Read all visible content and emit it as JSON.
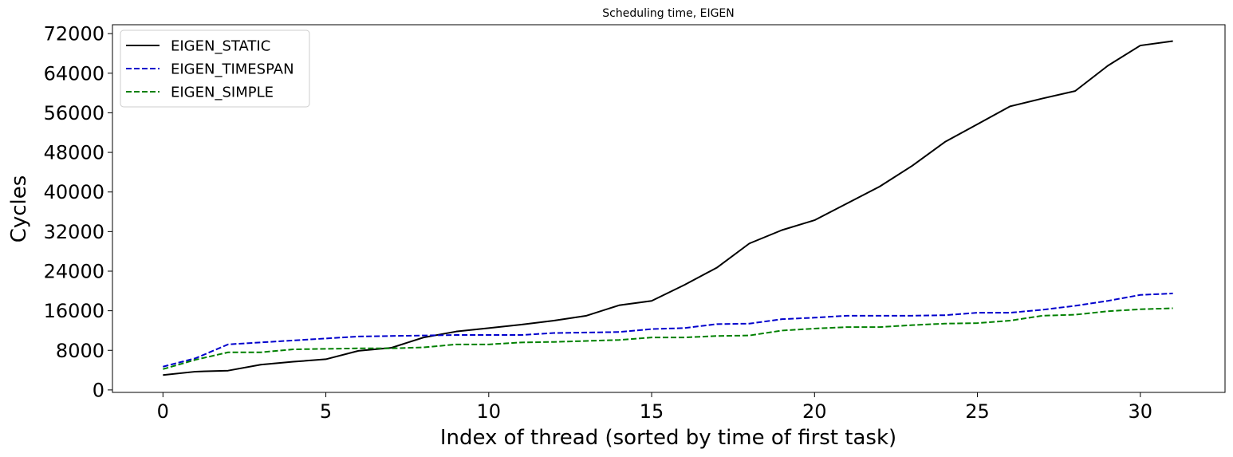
{
  "chart_data": {
    "type": "line",
    "title": "Scheduling time, EIGEN",
    "xlabel": "Index of thread (sorted by time of first task)",
    "ylabel": "Cycles",
    "xlim": [
      -1.55,
      32.6
    ],
    "ylim": [
      -500,
      73800
    ],
    "xticks": [
      0,
      5,
      10,
      15,
      20,
      25,
      30
    ],
    "yticks": [
      0,
      8000,
      16000,
      24000,
      32000,
      40000,
      48000,
      56000,
      64000,
      72000
    ],
    "grid": false,
    "legend_position": "top-left",
    "x": [
      0,
      1,
      2,
      3,
      4,
      5,
      6,
      7,
      8,
      9,
      10,
      11,
      12,
      13,
      14,
      15,
      16,
      17,
      18,
      19,
      20,
      21,
      22,
      23,
      24,
      25,
      26,
      27,
      28,
      29,
      30,
      31
    ],
    "series": [
      {
        "name": "EIGEN_STATIC",
        "color": "#000000",
        "dash": "solid",
        "values": [
          3000,
          3700,
          3900,
          5100,
          5700,
          6200,
          7900,
          8500,
          10600,
          11800,
          12500,
          13200,
          14000,
          15000,
          17100,
          18000,
          21200,
          24700,
          29600,
          32300,
          34300,
          37700,
          41100,
          45300,
          50100,
          53700,
          57300,
          58900,
          60400,
          65500,
          69600,
          70500
        ]
      },
      {
        "name": "EIGEN_TIMESPAN",
        "color": "#0000cc",
        "dash": "dashed",
        "values": [
          4700,
          6400,
          9200,
          9600,
          10000,
          10400,
          10800,
          10900,
          11000,
          11100,
          11100,
          11100,
          11500,
          11600,
          11700,
          12300,
          12500,
          13300,
          13400,
          14300,
          14600,
          15000,
          15000,
          15000,
          15100,
          15600,
          15600,
          16200,
          17000,
          18000,
          19200,
          19500
        ]
      },
      {
        "name": "EIGEN_SIMPLE",
        "color": "#008000",
        "dash": "dashed",
        "values": [
          4200,
          6100,
          7600,
          7600,
          8200,
          8300,
          8400,
          8400,
          8600,
          9200,
          9200,
          9600,
          9700,
          9900,
          10100,
          10600,
          10600,
          10900,
          11000,
          12000,
          12400,
          12700,
          12700,
          13100,
          13400,
          13500,
          14000,
          15000,
          15200,
          15900,
          16300,
          16500
        ]
      }
    ]
  }
}
